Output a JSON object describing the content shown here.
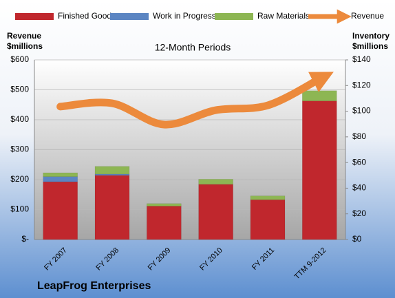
{
  "chart_data": {
    "type": "bar",
    "title": "12-Month Periods",
    "footer": "LeapFrog Enterprises",
    "ylabel": "Revenue $millions",
    "y2label": "Inventory $millions",
    "categories": [
      "FY 2007",
      "FY 2008",
      "FY 2009",
      "FY 2010",
      "FY 2011",
      "TTM 9-2012"
    ],
    "series": [
      {
        "name": "Finished Goods",
        "type": "bar",
        "axis": "y2",
        "color": "#c0272d",
        "values": [
          45,
          50,
          26,
          43,
          31,
          108
        ]
      },
      {
        "name": "Work in Progress",
        "type": "bar",
        "axis": "y2",
        "color": "#5b85c2",
        "values": [
          4,
          1,
          0,
          0,
          0,
          0
        ]
      },
      {
        "name": "Raw Materials",
        "type": "bar",
        "axis": "y2",
        "color": "#8db653",
        "values": [
          3,
          6,
          2,
          4,
          3,
          8
        ]
      },
      {
        "name": "Revenue",
        "type": "line",
        "axis": "y",
        "color": "#ec8a3c",
        "values": [
          444,
          455,
          384,
          432,
          448,
          536
        ]
      }
    ],
    "ylim": [
      0,
      600
    ],
    "yticks": [
      {
        "value": 0,
        "label": "$-"
      },
      {
        "value": 100,
        "label": "$100"
      },
      {
        "value": 200,
        "label": "$200"
      },
      {
        "value": 300,
        "label": "$300"
      },
      {
        "value": 400,
        "label": "$400"
      },
      {
        "value": 500,
        "label": "$500"
      },
      {
        "value": 600,
        "label": "$600"
      }
    ],
    "y2lim": [
      0,
      140
    ],
    "y2ticks": [
      {
        "value": 0,
        "label": "$0"
      },
      {
        "value": 20,
        "label": "$20"
      },
      {
        "value": 40,
        "label": "$40"
      },
      {
        "value": 60,
        "label": "$60"
      },
      {
        "value": 80,
        "label": "$80"
      },
      {
        "value": 100,
        "label": "$100"
      },
      {
        "value": 120,
        "label": "$120"
      },
      {
        "value": 140,
        "label": "$140"
      }
    ],
    "grid": true,
    "legend": "top"
  }
}
